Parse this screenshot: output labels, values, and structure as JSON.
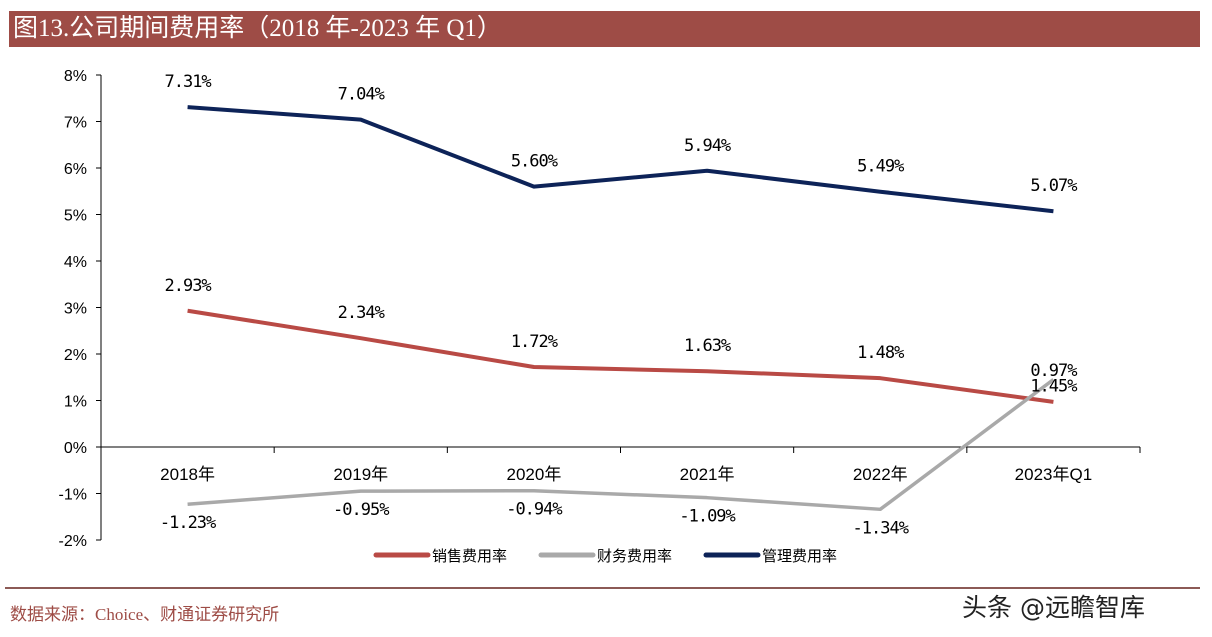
{
  "title": "图13.公司期间费用率（2018 年-2023 年 Q1）",
  "source": "数据来源：Choice、财通证券研究所",
  "watermark": "头条 @远瞻智库",
  "chart_data": {
    "type": "line",
    "categories": [
      "2018年",
      "2019年",
      "2020年",
      "2021年",
      "2022年",
      "2023年Q1"
    ],
    "ylim": [
      -2,
      8
    ],
    "yticks": [
      -2,
      -1,
      0,
      1,
      2,
      3,
      4,
      5,
      6,
      7,
      8
    ],
    "ytick_labels": [
      "-2%",
      "-1%",
      "0%",
      "1%",
      "2%",
      "3%",
      "4%",
      "5%",
      "6%",
      "7%",
      "8%"
    ],
    "grid": false,
    "legend_position": "bottom",
    "series": [
      {
        "name": "销售费用率",
        "color": "#b94a45",
        "values": [
          2.93,
          2.34,
          1.72,
          1.63,
          1.48,
          0.97
        ],
        "labels": [
          "2.93%",
          "2.34%",
          "1.72%",
          "1.63%",
          "1.48%",
          "0.97%"
        ]
      },
      {
        "name": "财务费用率",
        "color": "#a9a9a9",
        "values": [
          -1.23,
          -0.95,
          -0.94,
          -1.09,
          -1.34,
          1.45
        ],
        "labels": [
          "-1.23%",
          "-0.95%",
          "-0.94%",
          "-1.09%",
          "-1.34%",
          "1.45%"
        ]
      },
      {
        "name": "管理费用率",
        "color": "#0d2358",
        "values": [
          7.31,
          7.04,
          5.6,
          5.94,
          5.49,
          5.07
        ],
        "labels": [
          "7.31%",
          "7.04%",
          "5.60%",
          "5.94%",
          "5.49%",
          "5.07%"
        ]
      }
    ]
  }
}
